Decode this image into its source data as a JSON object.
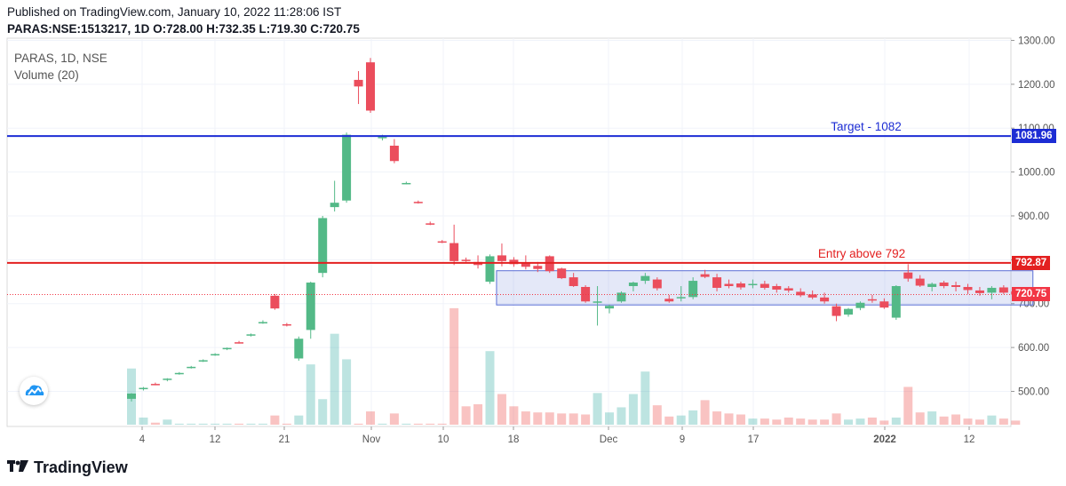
{
  "header": {
    "published": "Published on TradingView.com, January 10, 2022 11:28:06 IST",
    "symbol": "PARAS:NSE:1513217, 1D",
    "o_label": "O:",
    "o": "728.00",
    "h_label": "H:",
    "h": "732.35",
    "l_label": "L:",
    "l": "719.30",
    "c_label": "C:",
    "c": "720.75"
  },
  "legend": {
    "title": "PARAS, 1D, NSE",
    "volume": "Volume (20)"
  },
  "brand": {
    "name": "TradingView"
  },
  "colors": {
    "up": "#26a69a",
    "upBody": "#53b987",
    "down": "#ef5350",
    "downBody": "#eb4d5c",
    "target": "#1d2dd4",
    "entry": "#e32020",
    "last": "#f23645"
  },
  "chart_data": {
    "type": "candlestick",
    "yaxis": {
      "ticks": [
        "1300.00",
        "1200.00",
        "1100.00",
        "1000.00",
        "900.00",
        "800.00",
        "700.00",
        "600.00",
        "500.00"
      ],
      "min": 420,
      "max": 1305
    },
    "xaxis": {
      "ticks": [
        "4",
        "12",
        "21",
        "Nov",
        "10",
        "18",
        "Dec",
        "9",
        "17",
        "2022",
        "12"
      ]
    },
    "lines": [
      {
        "label": "Target - 1082",
        "value": 1081.96,
        "tag": "1081.96",
        "color": "#1d2dd4"
      },
      {
        "label": "Entry above 792",
        "value": 792.87,
        "tag": "792.87",
        "color": "#e32020"
      }
    ],
    "last_price": {
      "value": 720.75,
      "tag": "720.75"
    },
    "zone": {
      "from_index": 31,
      "to_index": 75,
      "low": 697,
      "high": 775
    },
    "candles": [
      [
        483,
        496,
        477,
        495,
        0.55
      ],
      [
        505,
        510,
        502,
        508,
        0.07
      ],
      [
        517,
        520,
        514,
        516,
        0.02
      ],
      [
        527,
        530,
        523,
        529,
        0.05
      ],
      [
        540,
        544,
        538,
        542,
        0.01
      ],
      [
        555,
        558,
        552,
        556,
        0.01
      ],
      [
        570,
        573,
        567,
        571,
        0.01
      ],
      [
        584,
        587,
        581,
        585,
        0.01
      ],
      [
        597,
        600,
        594,
        599,
        0.01
      ],
      [
        612,
        615,
        609,
        611,
        0.01
      ],
      [
        628,
        632,
        625,
        630,
        0.01
      ],
      [
        658,
        662,
        654,
        658,
        0.01
      ],
      [
        718,
        722,
        686,
        689,
        0.09
      ],
      [
        653,
        656,
        648,
        652,
        0.01
      ],
      [
        575,
        625,
        570,
        620,
        0.09
      ],
      [
        640,
        750,
        620,
        748,
        0.59
      ],
      [
        770,
        900,
        760,
        895,
        0.25
      ],
      [
        920,
        980,
        910,
        930,
        0.89
      ],
      [
        935,
        1090,
        930,
        1085,
        0.64
      ],
      [
        1210,
        1230,
        1155,
        1195,
        0.01
      ],
      [
        1250,
        1260,
        1135,
        1140,
        0.13
      ],
      [
        1079,
        1085,
        1072,
        1080,
        0.01
      ],
      [
        1060,
        1075,
        1020,
        1025,
        0.11
      ],
      [
        975,
        978,
        972,
        975,
        0.01
      ],
      [
        932,
        935,
        928,
        930,
        0.01
      ],
      [
        883,
        887,
        879,
        882,
        0.01
      ],
      [
        842,
        845,
        838,
        840,
        0.01
      ],
      [
        838,
        880,
        788,
        797,
        1.14
      ],
      [
        800,
        805,
        795,
        799,
        0.18
      ],
      [
        795,
        810,
        780,
        788,
        0.2
      ],
      [
        750,
        812,
        745,
        808,
        0.72
      ],
      [
        810,
        837,
        785,
        797,
        0.3
      ],
      [
        800,
        806,
        784,
        790,
        0.18
      ],
      [
        793,
        810,
        778,
        784,
        0.13
      ],
      [
        786,
        795,
        772,
        779,
        0.12
      ],
      [
        808,
        810,
        770,
        774,
        0.12
      ],
      [
        780,
        782,
        756,
        758,
        0.11
      ],
      [
        760,
        770,
        738,
        740,
        0.11
      ],
      [
        738,
        742,
        702,
        705,
        0.1
      ],
      [
        705,
        740,
        650,
        705,
        0.31
      ],
      [
        689,
        698,
        678,
        695,
        0.12
      ],
      [
        705,
        728,
        702,
        725,
        0.17
      ],
      [
        740,
        750,
        728,
        748,
        0.3
      ],
      [
        752,
        770,
        745,
        763,
        0.52
      ],
      [
        755,
        760,
        730,
        735,
        0.19
      ],
      [
        711,
        720,
        702,
        705,
        0.08
      ],
      [
        712,
        740,
        705,
        715,
        0.09
      ],
      [
        715,
        760,
        710,
        752,
        0.14
      ],
      [
        767,
        777,
        758,
        761,
        0.24
      ],
      [
        760,
        768,
        728,
        736,
        0.13
      ],
      [
        745,
        755,
        735,
        740,
        0.11
      ],
      [
        746,
        750,
        732,
        737,
        0.1
      ],
      [
        743,
        755,
        735,
        745,
        0.06
      ],
      [
        745,
        752,
        732,
        736,
        0.06
      ],
      [
        740,
        745,
        725,
        732,
        0.05
      ],
      [
        735,
        740,
        725,
        730,
        0.07
      ],
      [
        727,
        735,
        715,
        719,
        0.06
      ],
      [
        721,
        730,
        710,
        714,
        0.05
      ],
      [
        714,
        725,
        700,
        705,
        0.05
      ],
      [
        694,
        700,
        660,
        672,
        0.11
      ],
      [
        675,
        690,
        670,
        688,
        0.05
      ],
      [
        690,
        705,
        685,
        702,
        0.06
      ],
      [
        710,
        720,
        702,
        709,
        0.07
      ],
      [
        705,
        712,
        688,
        691,
        0.04
      ],
      [
        668,
        742,
        663,
        740,
        0.07
      ],
      [
        771,
        790,
        750,
        757,
        0.37
      ],
      [
        757,
        765,
        738,
        741,
        0.12
      ],
      [
        738,
        748,
        728,
        745,
        0.13
      ],
      [
        748,
        752,
        735,
        740,
        0.08
      ],
      [
        742,
        750,
        728,
        738,
        0.1
      ],
      [
        738,
        745,
        722,
        731,
        0.06
      ],
      [
        730,
        738,
        718,
        724,
        0.05
      ],
      [
        725,
        740,
        710,
        736,
        0.09
      ],
      [
        737,
        742,
        722,
        725,
        0.06
      ],
      [
        728,
        732,
        719,
        720.75,
        0.04
      ]
    ]
  }
}
